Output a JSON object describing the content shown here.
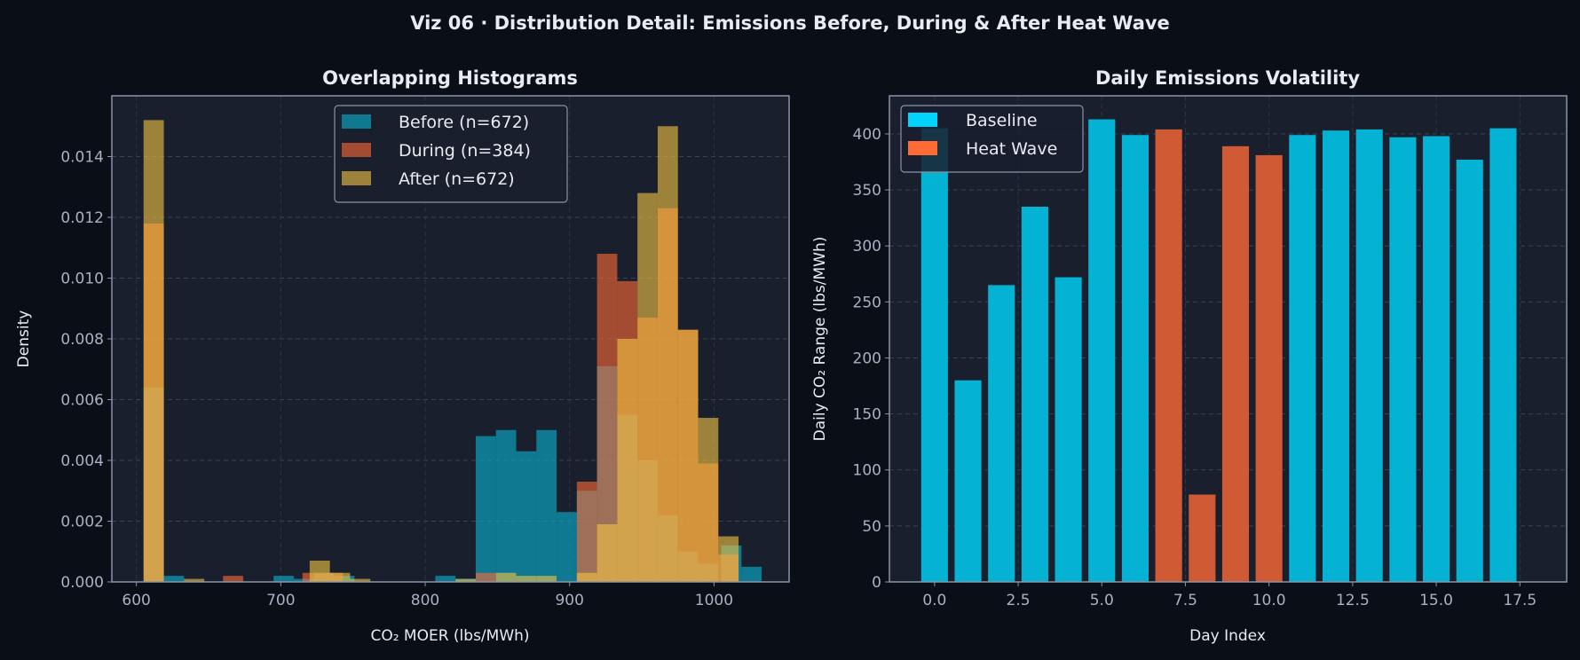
{
  "title": "Viz 06 · Distribution Detail: Emissions Before, During & After Heat Wave",
  "colors": {
    "background": "#0a0e17",
    "axes_bg": "#1a1f2e",
    "axis": "#8a93a8",
    "text": "#e8ecf2",
    "tick_text": "#a9b1c2"
  },
  "chart_data": [
    {
      "type": "histogram",
      "title": "Overlapping Histograms",
      "xlabel": "CO₂ MOER (lbs/MWh)",
      "ylabel": "Density",
      "xlim": [
        583,
        1052
      ],
      "ylim": [
        0,
        0.016
      ],
      "xticks": [
        600,
        700,
        800,
        900,
        1000
      ],
      "xtick_labels": [
        "600",
        "700",
        "800",
        "900",
        "1000"
      ],
      "yticks": [
        0,
        0.002,
        0.004,
        0.006,
        0.008,
        0.01,
        0.012,
        0.014
      ],
      "ytick_labels": [
        "0.000",
        "0.002",
        "0.004",
        "0.006",
        "0.008",
        "0.010",
        "0.012",
        "0.014"
      ],
      "grid": true,
      "legend_position": "top-center",
      "series": [
        {
          "name": "Before (n=672)",
          "color": "#06b6d4",
          "bins": [
            [
              605,
              619,
              0.0064
            ],
            [
              619,
              633,
              0.0002
            ],
            [
              695,
              709,
              0.0002
            ],
            [
              709,
              723,
              0.0001
            ],
            [
              723,
              737,
              0.0003
            ],
            [
              737,
              751,
              0.0002
            ],
            [
              807,
              821,
              0.0002
            ],
            [
              821,
              835,
              0.0001
            ],
            [
              835,
              849,
              0.0048
            ],
            [
              849,
              863,
              0.005
            ],
            [
              863,
              877,
              0.0043
            ],
            [
              877,
              891,
              0.005
            ],
            [
              891,
              905,
              0.0023
            ],
            [
              905,
              919,
              0.003
            ],
            [
              919,
              933,
              0.0071
            ],
            [
              933,
              947,
              0.0055
            ],
            [
              947,
              961,
              0.004
            ],
            [
              961,
              975,
              0.0022
            ],
            [
              975,
              989,
              0.001
            ],
            [
              989,
              1003,
              0.0006
            ],
            [
              1005,
              1019,
              0.0012
            ],
            [
              1019,
              1033,
              0.0005
            ]
          ]
        },
        {
          "name": "During (n=384)",
          "color": "#ff6b35",
          "bins": [
            [
              605,
              619,
              0.0118
            ],
            [
              660,
              674,
              0.0002
            ],
            [
              715,
              729,
              0.0003
            ],
            [
              729,
              743,
              0.0003
            ],
            [
              835,
              849,
              0.0003
            ],
            [
              905,
              919,
              0.0033
            ],
            [
              919,
              933,
              0.0108
            ],
            [
              933,
              947,
              0.0099
            ],
            [
              947,
              961,
              0.0087
            ],
            [
              961,
              975,
              0.0123
            ],
            [
              975,
              989,
              0.0083
            ],
            [
              989,
              1003,
              0.0039
            ],
            [
              1003,
              1017,
              0.0009
            ]
          ]
        },
        {
          "name": "After  (n=672)",
          "color": "#f5c542",
          "bins": [
            [
              605,
              619,
              0.0152
            ],
            [
              633,
              647,
              0.0001
            ],
            [
              720,
              734,
              0.0007
            ],
            [
              734,
              748,
              0.0003
            ],
            [
              748,
              762,
              0.0001
            ],
            [
              821,
              835,
              0.0001
            ],
            [
              849,
              863,
              0.0003
            ],
            [
              863,
              877,
              0.0002
            ],
            [
              877,
              891,
              0.0002
            ],
            [
              905,
              919,
              0.0003
            ],
            [
              919,
              933,
              0.0019
            ],
            [
              933,
              947,
              0.008
            ],
            [
              947,
              961,
              0.0128
            ],
            [
              961,
              975,
              0.015
            ],
            [
              975,
              989,
              0.0083
            ],
            [
              989,
              1003,
              0.0054
            ],
            [
              1003,
              1017,
              0.0015
            ]
          ]
        }
      ]
    },
    {
      "type": "bar",
      "title": "Daily Emissions Volatility",
      "xlabel": "Day Index",
      "ylabel": "Daily CO₂ Range (lbs/MWh)",
      "xlim": [
        -1.35,
        18.9
      ],
      "ylim": [
        0,
        434
      ],
      "xticks": [
        0,
        2.5,
        5,
        7.5,
        10,
        12.5,
        15,
        17.5
      ],
      "xtick_labels": [
        "0.0",
        "2.5",
        "5.0",
        "7.5",
        "10.0",
        "12.5",
        "15.0",
        "17.5"
      ],
      "yticks": [
        0,
        50,
        100,
        150,
        200,
        250,
        300,
        350,
        400
      ],
      "ytick_labels": [
        "0",
        "50",
        "100",
        "150",
        "200",
        "250",
        "300",
        "350",
        "400"
      ],
      "grid": true,
      "legend_position": "top-left",
      "x": [
        0,
        1,
        2,
        3,
        4,
        5,
        6,
        7,
        8,
        9,
        10,
        11,
        12,
        13,
        14,
        15,
        16,
        17
      ],
      "values": [
        405,
        180,
        265,
        335,
        272,
        413,
        399,
        404,
        78,
        389,
        381,
        399,
        403,
        404,
        397,
        398,
        377,
        405
      ],
      "groups": [
        "Baseline",
        "Baseline",
        "Baseline",
        "Baseline",
        "Baseline",
        "Baseline",
        "Baseline",
        "Heat Wave",
        "Heat Wave",
        "Heat Wave",
        "Heat Wave",
        "Baseline",
        "Baseline",
        "Baseline",
        "Baseline",
        "Baseline",
        "Baseline",
        "Baseline"
      ],
      "legend": [
        {
          "name": "Baseline",
          "color": "#00d4ff",
          "bar_color": "#04b2d4"
        },
        {
          "name": "Heat Wave",
          "color": "#ff6b35",
          "bar_color": "#d05a33"
        }
      ]
    }
  ]
}
